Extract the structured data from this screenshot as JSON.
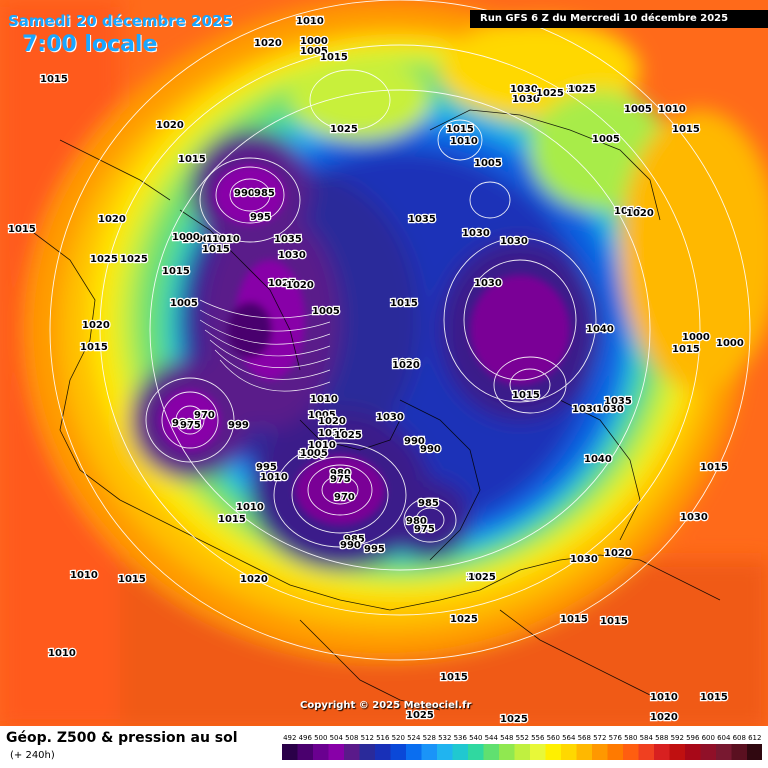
{
  "header": {
    "date": "Samedi 20 décembre 2025",
    "time": "7:00 locale",
    "run": "Run GFS 6 Z du Mercredi 10 décembre 2025"
  },
  "footer": {
    "title": "Géop. Z500 & pression au sol",
    "subtitle": "(+ 240h)",
    "copyright": "Copyright © 2025 Meteociel.fr"
  },
  "legend": {
    "ticks": [
      "492",
      "496",
      "500",
      "504",
      "508",
      "512",
      "516",
      "520",
      "524",
      "528",
      "532",
      "536",
      "540",
      "544",
      "548",
      "552",
      "556",
      "560",
      "564",
      "568",
      "572",
      "576",
      "580",
      "584",
      "588",
      "592",
      "596",
      "600",
      "604",
      "608",
      "612"
    ],
    "colors": [
      "#2a0048",
      "#4a006e",
      "#6a0090",
      "#8800a8",
      "#5a1a8a",
      "#2a2a9a",
      "#1830b8",
      "#0a48d8",
      "#0a6ef0",
      "#1a94f8",
      "#20b4f0",
      "#20c8d0",
      "#30d8a0",
      "#60e070",
      "#90e850",
      "#c0f040",
      "#e8f838",
      "#fff000",
      "#ffd800",
      "#ffb800",
      "#ff9800",
      "#ff7a00",
      "#ff5e10",
      "#f04020",
      "#d82020",
      "#c01010",
      "#a80818",
      "#901028",
      "#781830",
      "#5a1020",
      "#300810"
    ]
  },
  "pressure_labels": [
    "1005",
    "1010",
    "1000",
    "1005",
    "1015",
    "1015",
    "1020",
    "1015",
    "1025",
    "1015",
    "1010",
    "1005",
    "1030",
    "1030",
    "1025",
    "1015",
    "1005",
    "1010",
    "1015",
    "1005",
    "1010",
    "1020",
    "1015",
    "1025",
    "990",
    "985",
    "995",
    "1000",
    "1035",
    "1030",
    "1035",
    "1000",
    "1015",
    "1010",
    "1025",
    "1020",
    "1030",
    "1030",
    "1030",
    "1025",
    "1015",
    "1005",
    "1040",
    "1000",
    "1015",
    "1020",
    "1020",
    "1015",
    "1005",
    "1010",
    "1030",
    "1035",
    "1015",
    "1020",
    "1020",
    "1025",
    "1000",
    "1030",
    "1015",
    "1010",
    "1015",
    "1025",
    "1010",
    "1000",
    "1015",
    "1010",
    "1020",
    "980",
    "970",
    "975",
    "999",
    "995",
    "1000",
    "1005",
    "995",
    "990",
    "990",
    "980",
    "975",
    "970",
    "985",
    "980",
    "975",
    "985",
    "990",
    "995",
    "1005",
    "1010",
    "1015",
    "1020",
    "1025",
    "1030",
    "1040",
    "1015",
    "1030",
    "1030",
    "1020",
    "1015",
    "1015",
    "1025",
    "1025",
    "1020",
    "1015",
    "1010",
    "1010",
    "1025",
    "1020",
    "1015",
    "1010",
    "1020"
  ]
}
